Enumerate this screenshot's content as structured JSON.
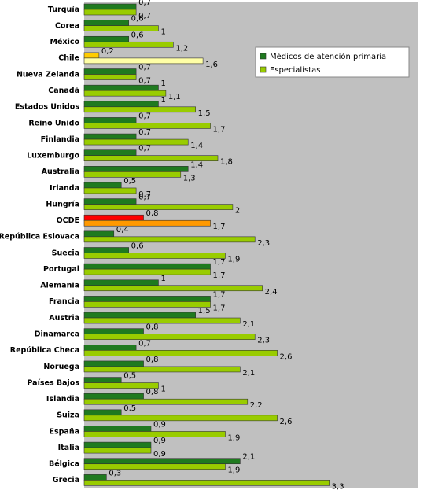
{
  "chart_data": {
    "type": "bar",
    "orientation": "horizontal",
    "categories": [
      "Turquía",
      "Corea",
      "México",
      "Chile",
      "Nueva Zelanda",
      "Canadá",
      "Estados Unidos",
      "Reino Unido",
      "Finlandia",
      "Luxemburgo",
      "Australia",
      "Irlanda",
      "Hungría",
      "OCDE",
      "República Eslovaca",
      "Suecia",
      "Portugal",
      "Alemania",
      "Francia",
      "Austria",
      "Dinamarca",
      "República Checa",
      "Noruega",
      "Países Bajos",
      "Islandia",
      "Suiza",
      "España",
      "Italia",
      "Bélgica",
      "Grecia"
    ],
    "series": [
      {
        "name": "Médicos de atención primaria",
        "color": "#1f7a1f",
        "point_colors": {
          "3": "#ffcc00",
          "13": "#ff0000"
        },
        "values": [
          0.7,
          0.6,
          0.6,
          0.2,
          0.7,
          1,
          1,
          0.7,
          0.7,
          0.7,
          1.4,
          0.5,
          0.7,
          0.8,
          0.4,
          0.6,
          1.7,
          1,
          1.7,
          1.5,
          0.8,
          0.7,
          0.8,
          0.5,
          0.8,
          0.5,
          0.9,
          0.9,
          2.1,
          0.3
        ],
        "value_labels": [
          "0,7",
          "0,6",
          "0,6",
          "0,2",
          "0,7",
          "1",
          "1",
          "0,7",
          "0,7",
          "0,7",
          "1,4",
          "0,5",
          "0,7",
          "0,8",
          "0,4",
          "0,6",
          "1,7",
          "1",
          "1,7",
          "1,5",
          "0,8",
          "0,7",
          "0,8",
          "0,5",
          "0,8",
          "0,5",
          "0,9",
          "0,9",
          "2,1",
          "0,3"
        ]
      },
      {
        "name": "Especialistas",
        "color": "#99cc00",
        "point_colors": {
          "3": "#ffffa6",
          "13": "#ff9900"
        },
        "values": [
          0.7,
          1,
          1.2,
          1.6,
          0.7,
          1.1,
          1.5,
          1.7,
          1.4,
          1.8,
          1.3,
          0.7,
          2,
          1.7,
          2.3,
          1.9,
          1.7,
          2.4,
          1.7,
          2.1,
          2.3,
          2.6,
          2.1,
          1,
          2.2,
          2.6,
          1.9,
          0.9,
          1.9,
          3.3
        ],
        "value_labels": [
          "0,7",
          "1",
          "1,2",
          "1,6",
          "0,7",
          "1,1",
          "1,5",
          "1,7",
          "1,4",
          "1,8",
          "1,3",
          "0,7",
          "2",
          "1,7",
          "2,3",
          "1,9",
          "1,7",
          "2,4",
          "1,7",
          "2,1",
          "2,3",
          "2,6",
          "2,1",
          "1",
          "2,2",
          "2,6",
          "1,9",
          "0,9",
          "1,9",
          "3,3"
        ]
      }
    ],
    "xlim": [
      0,
      4.5
    ],
    "plot_background": "#c0c0c0",
    "legend": "upper right"
  }
}
